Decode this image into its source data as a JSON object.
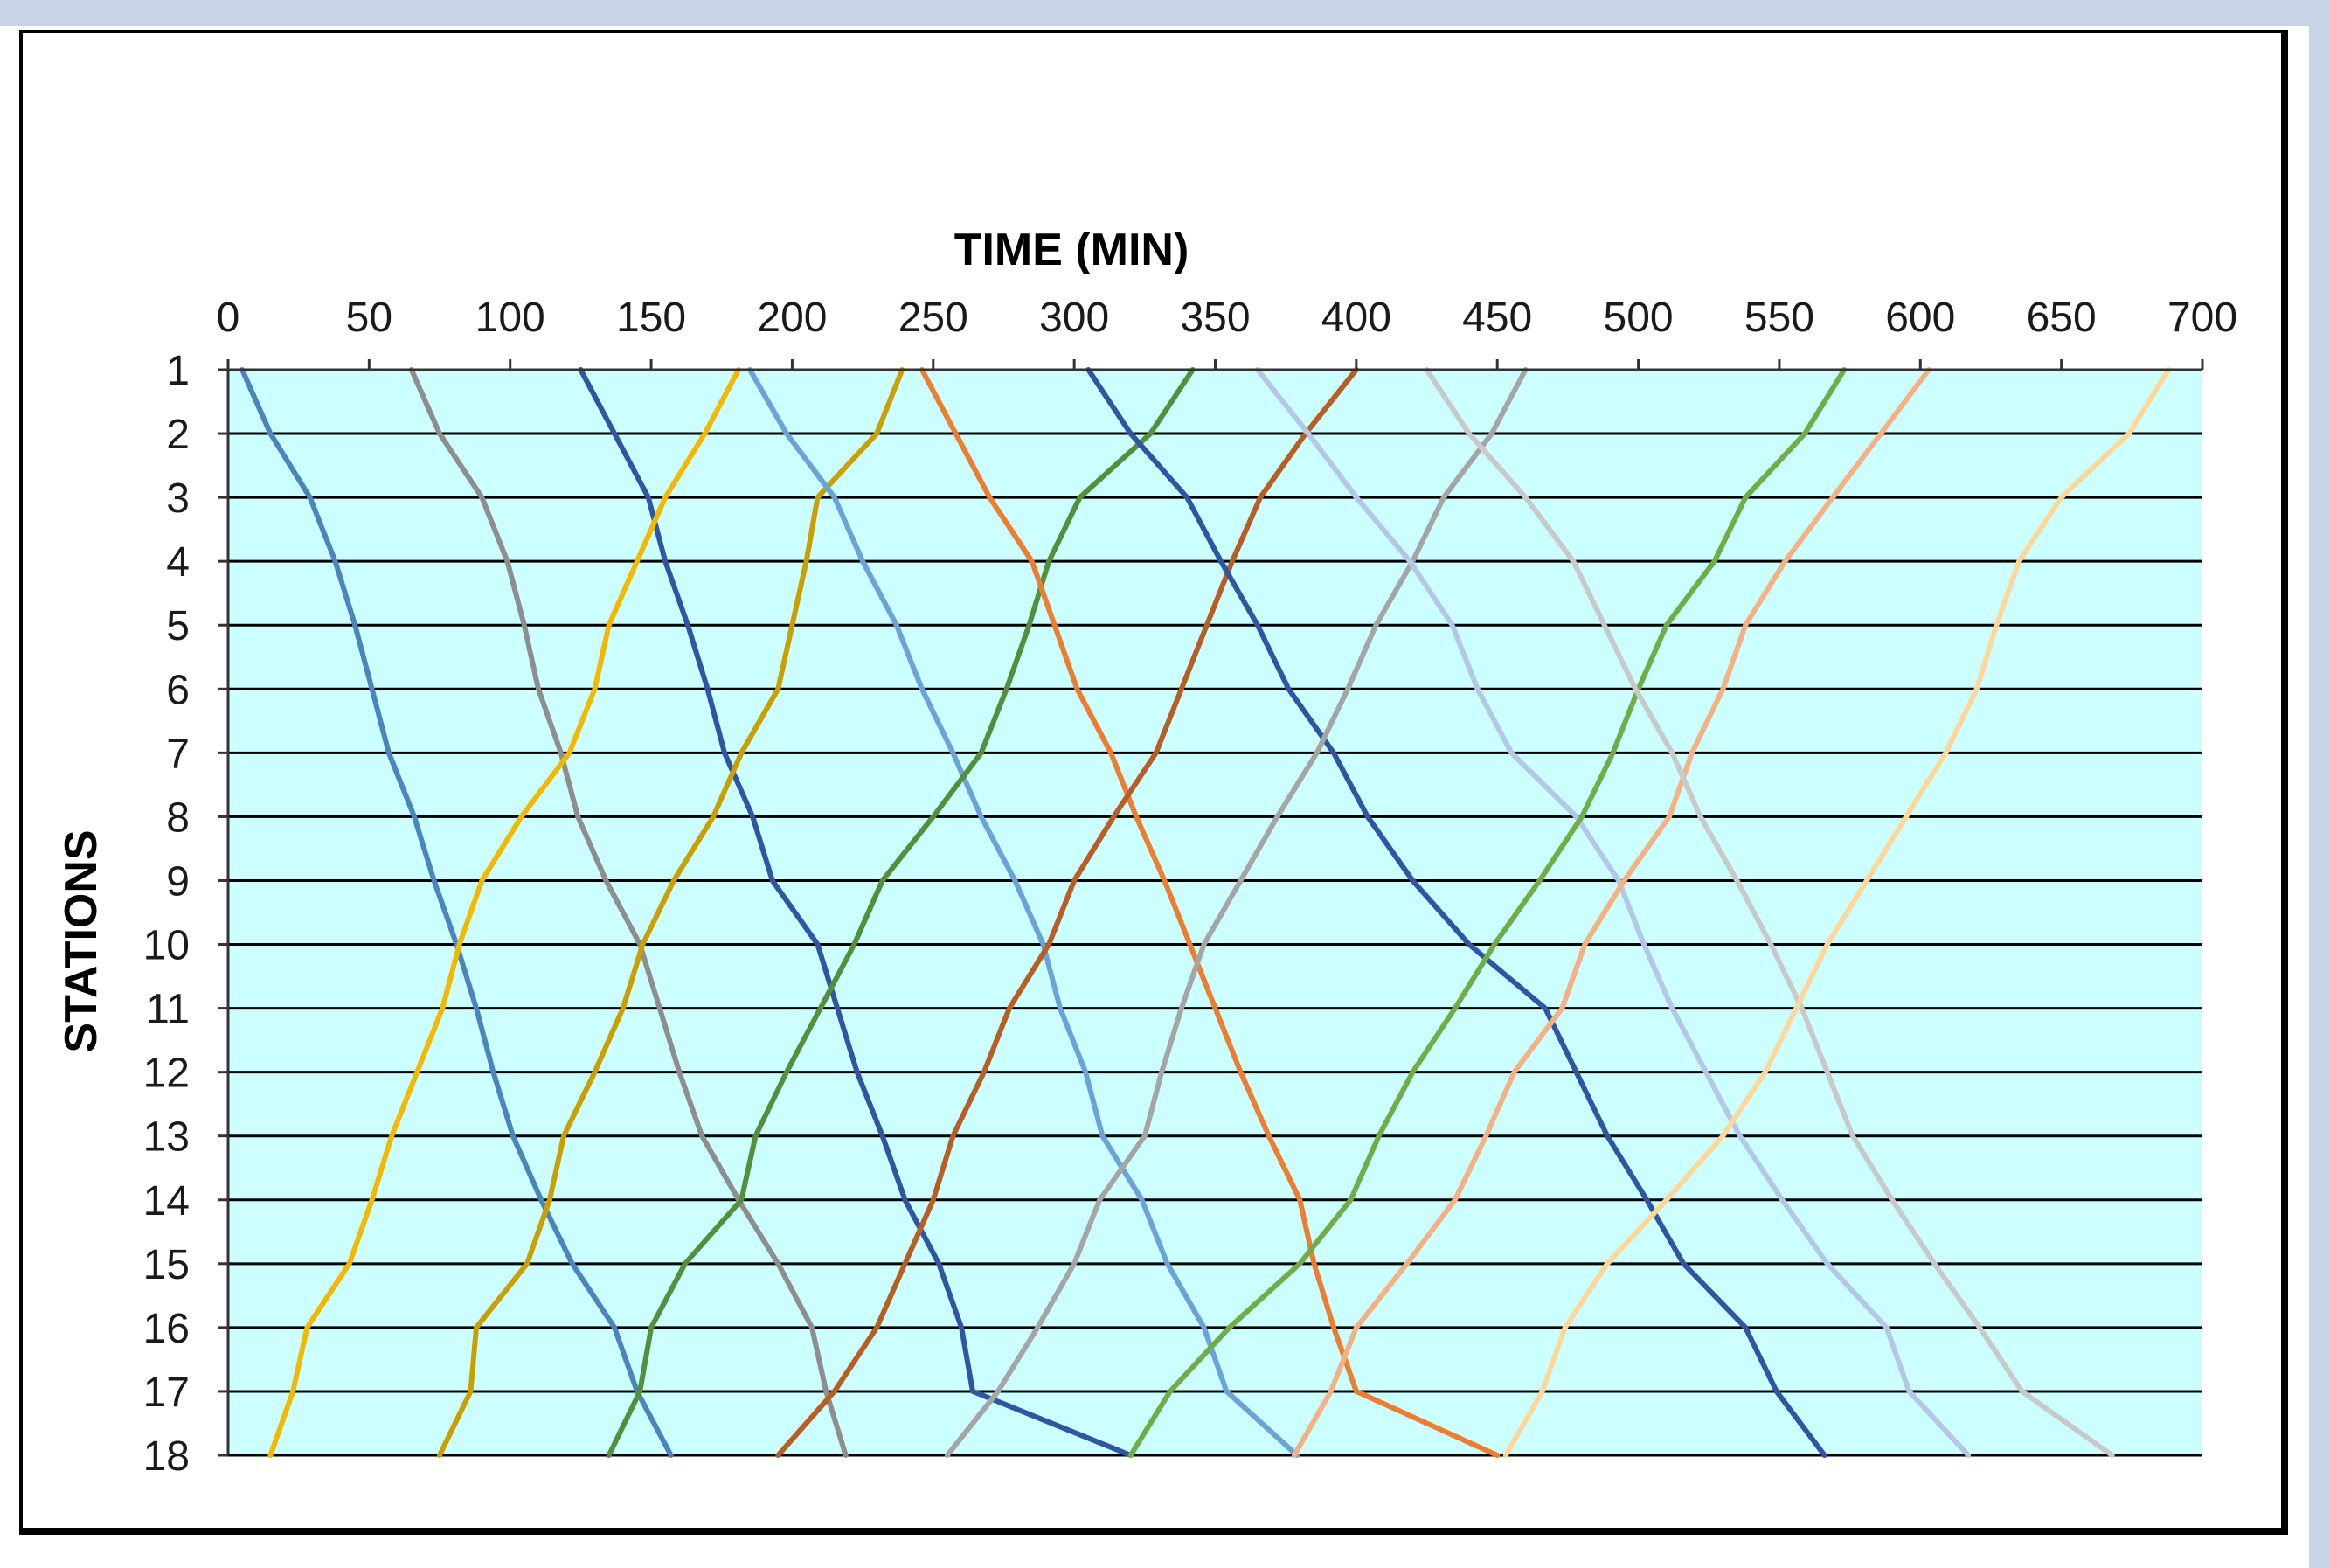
{
  "chart_data": {
    "type": "line",
    "title": "",
    "xlabel": "TIME (MIN)",
    "ylabel": "STATIONS",
    "xlim": [
      0,
      700
    ],
    "x_ticks": [
      0,
      50,
      100,
      150,
      200,
      250,
      300,
      350,
      400,
      450,
      500,
      550,
      600,
      650,
      700
    ],
    "ylim": [
      1,
      18
    ],
    "y_ticks": [
      1,
      2,
      3,
      4,
      5,
      6,
      7,
      8,
      9,
      10,
      11,
      12,
      13,
      14,
      15,
      16,
      17,
      18
    ],
    "y_axis_reversed": true,
    "x_axis_position": "top",
    "plot_background": "#ccffff",
    "grid": {
      "horizontal": true,
      "vertical": false,
      "color": "#000000"
    },
    "legend": "none",
    "series": [
      {
        "color": "#4a86bd",
        "points": [
          [
            5,
            1
          ],
          [
            15,
            2
          ],
          [
            29,
            3
          ],
          [
            38,
            4
          ],
          [
            45,
            5
          ],
          [
            51,
            6
          ],
          [
            57,
            7
          ],
          [
            66,
            8
          ],
          [
            73,
            9
          ],
          [
            81,
            10
          ],
          [
            88,
            11
          ],
          [
            94,
            12
          ],
          [
            101,
            13
          ],
          [
            111,
            14
          ],
          [
            122,
            15
          ],
          [
            137,
            16
          ],
          [
            145,
            17
          ],
          [
            157,
            18
          ]
        ]
      },
      {
        "color": "#8e8e8e",
        "points": [
          [
            65,
            1
          ],
          [
            75,
            2
          ],
          [
            90,
            3
          ],
          [
            99,
            4
          ],
          [
            105,
            5
          ],
          [
            110,
            6
          ],
          [
            118,
            7
          ],
          [
            124,
            8
          ],
          [
            134,
            9
          ],
          [
            146,
            10
          ],
          [
            153,
            11
          ],
          [
            160,
            12
          ],
          [
            168,
            13
          ],
          [
            181,
            14
          ],
          [
            195,
            15
          ],
          [
            207,
            16
          ],
          [
            212,
            17
          ],
          [
            219,
            18
          ]
        ]
      },
      {
        "color": "#2f56a3",
        "points": [
          [
            125,
            1
          ],
          [
            137,
            2
          ],
          [
            149,
            3
          ],
          [
            155,
            4
          ],
          [
            163,
            5
          ],
          [
            170,
            6
          ],
          [
            176,
            7
          ],
          [
            186,
            8
          ],
          [
            193,
            9
          ],
          [
            209,
            10
          ],
          [
            216,
            11
          ],
          [
            223,
            12
          ],
          [
            232,
            13
          ],
          [
            240,
            14
          ],
          [
            252,
            15
          ],
          [
            260,
            16
          ],
          [
            264,
            17
          ],
          [
            320,
            18
          ]
        ]
      },
      {
        "color": "#f5b800",
        "points": [
          [
            181,
            1
          ],
          [
            169,
            2
          ],
          [
            155,
            3
          ],
          [
            145,
            4
          ],
          [
            135,
            5
          ],
          [
            130,
            6
          ],
          [
            121,
            7
          ],
          [
            104,
            8
          ],
          [
            90,
            9
          ],
          [
            82,
            10
          ],
          [
            76,
            11
          ],
          [
            67,
            12
          ],
          [
            58,
            13
          ],
          [
            51,
            14
          ],
          [
            43,
            15
          ],
          [
            28,
            16
          ],
          [
            23,
            17
          ],
          [
            15,
            18
          ]
        ]
      },
      {
        "color": "#c9a000",
        "points": [
          [
            239,
            1
          ],
          [
            230,
            2
          ],
          [
            209,
            3
          ],
          [
            205,
            4
          ],
          [
            200,
            5
          ],
          [
            195,
            6
          ],
          [
            182,
            7
          ],
          [
            172,
            8
          ],
          [
            158,
            9
          ],
          [
            147,
            10
          ],
          [
            140,
            11
          ],
          [
            130,
            12
          ],
          [
            119,
            13
          ],
          [
            114,
            14
          ],
          [
            106,
            15
          ],
          [
            88,
            16
          ],
          [
            86,
            17
          ],
          [
            75,
            18
          ]
        ]
      },
      {
        "color": "#6aa3da",
        "points": [
          [
            185,
            1
          ],
          [
            198,
            2
          ],
          [
            215,
            3
          ],
          [
            225,
            4
          ],
          [
            237,
            5
          ],
          [
            246,
            6
          ],
          [
            257,
            7
          ],
          [
            267,
            8
          ],
          [
            279,
            9
          ],
          [
            289,
            10
          ],
          [
            295,
            11
          ],
          [
            304,
            12
          ],
          [
            310,
            13
          ],
          [
            324,
            14
          ],
          [
            333,
            15
          ],
          [
            346,
            16
          ],
          [
            354,
            17
          ],
          [
            379,
            18
          ]
        ]
      },
      {
        "color": "#548f3c",
        "points": [
          [
            342,
            1
          ],
          [
            327,
            2
          ],
          [
            302,
            3
          ],
          [
            291,
            4
          ],
          [
            284,
            5
          ],
          [
            276,
            6
          ],
          [
            267,
            7
          ],
          [
            250,
            8
          ],
          [
            232,
            9
          ],
          [
            222,
            10
          ],
          [
            210,
            11
          ],
          [
            198,
            12
          ],
          [
            187,
            13
          ],
          [
            182,
            14
          ],
          [
            162,
            15
          ],
          [
            150,
            16
          ],
          [
            146,
            17
          ],
          [
            135,
            18
          ]
        ]
      },
      {
        "color": "#ed7d31",
        "points": [
          [
            246,
            1
          ],
          [
            258,
            2
          ],
          [
            270,
            3
          ],
          [
            285,
            4
          ],
          [
            293,
            5
          ],
          [
            301,
            6
          ],
          [
            313,
            7
          ],
          [
            322,
            8
          ],
          [
            332,
            9
          ],
          [
            341,
            10
          ],
          [
            350,
            11
          ],
          [
            359,
            12
          ],
          [
            369,
            13
          ],
          [
            380,
            14
          ],
          [
            385,
            15
          ],
          [
            392,
            16
          ],
          [
            400,
            17
          ],
          [
            450,
            18
          ]
        ]
      },
      {
        "color": "#b85d24",
        "points": [
          [
            400,
            1
          ],
          [
            382,
            2
          ],
          [
            366,
            3
          ],
          [
            356,
            4
          ],
          [
            347,
            5
          ],
          [
            338,
            6
          ],
          [
            329,
            7
          ],
          [
            314,
            8
          ],
          [
            300,
            9
          ],
          [
            291,
            10
          ],
          [
            277,
            11
          ],
          [
            268,
            12
          ],
          [
            257,
            13
          ],
          [
            250,
            14
          ],
          [
            240,
            15
          ],
          [
            230,
            16
          ],
          [
            215,
            17
          ],
          [
            195,
            18
          ]
        ]
      },
      {
        "color": "#2f56a3",
        "points": [
          [
            305,
            1
          ],
          [
            320,
            2
          ],
          [
            340,
            3
          ],
          [
            352,
            4
          ],
          [
            365,
            5
          ],
          [
            376,
            6
          ],
          [
            392,
            7
          ],
          [
            404,
            8
          ],
          [
            420,
            9
          ],
          [
            440,
            10
          ],
          [
            467,
            11
          ],
          [
            478,
            12
          ],
          [
            489,
            13
          ],
          [
            503,
            14
          ],
          [
            516,
            15
          ],
          [
            538,
            16
          ],
          [
            549,
            17
          ],
          [
            566,
            18
          ]
        ]
      },
      {
        "color": "#a5a5a5",
        "points": [
          [
            460,
            1
          ],
          [
            448,
            2
          ],
          [
            431,
            3
          ],
          [
            420,
            4
          ],
          [
            407,
            5
          ],
          [
            397,
            6
          ],
          [
            386,
            7
          ],
          [
            372,
            8
          ],
          [
            359,
            9
          ],
          [
            346,
            10
          ],
          [
            338,
            11
          ],
          [
            331,
            12
          ],
          [
            325,
            13
          ],
          [
            309,
            14
          ],
          [
            300,
            15
          ],
          [
            287,
            16
          ],
          [
            273,
            17
          ],
          [
            255,
            18
          ]
        ]
      },
      {
        "color": "#b4c7e7",
        "points": [
          [
            365,
            1
          ],
          [
            383,
            2
          ],
          [
            400,
            3
          ],
          [
            419,
            4
          ],
          [
            434,
            5
          ],
          [
            443,
            6
          ],
          [
            455,
            7
          ],
          [
            478,
            8
          ],
          [
            493,
            9
          ],
          [
            502,
            10
          ],
          [
            512,
            11
          ],
          [
            524,
            12
          ],
          [
            536,
            13
          ],
          [
            551,
            14
          ],
          [
            567,
            15
          ],
          [
            588,
            16
          ],
          [
            596,
            17
          ],
          [
            617,
            18
          ]
        ]
      },
      {
        "color": "#70ad47",
        "points": [
          [
            573,
            1
          ],
          [
            559,
            2
          ],
          [
            538,
            3
          ],
          [
            527,
            4
          ],
          [
            510,
            5
          ],
          [
            500,
            6
          ],
          [
            491,
            7
          ],
          [
            480,
            8
          ],
          [
            465,
            9
          ],
          [
            449,
            10
          ],
          [
            435,
            11
          ],
          [
            420,
            12
          ],
          [
            408,
            13
          ],
          [
            398,
            14
          ],
          [
            380,
            15
          ],
          [
            355,
            16
          ],
          [
            334,
            17
          ],
          [
            320,
            18
          ]
        ]
      },
      {
        "color": "#f4b183",
        "points": [
          [
            603,
            1
          ],
          [
            586,
            2
          ],
          [
            569,
            3
          ],
          [
            552,
            4
          ],
          [
            538,
            5
          ],
          [
            530,
            6
          ],
          [
            519,
            7
          ],
          [
            511,
            8
          ],
          [
            495,
            9
          ],
          [
            481,
            10
          ],
          [
            473,
            11
          ],
          [
            456,
            12
          ],
          [
            446,
            13
          ],
          [
            435,
            14
          ],
          [
            418,
            15
          ],
          [
            400,
            16
          ],
          [
            391,
            17
          ],
          [
            378,
            18
          ]
        ]
      },
      {
        "color": "#c9c9c9",
        "points": [
          [
            425,
            1
          ],
          [
            440,
            2
          ],
          [
            460,
            3
          ],
          [
            477,
            4
          ],
          [
            488,
            5
          ],
          [
            499,
            6
          ],
          [
            512,
            7
          ],
          [
            522,
            8
          ],
          [
            535,
            9
          ],
          [
            547,
            10
          ],
          [
            558,
            11
          ],
          [
            567,
            12
          ],
          [
            576,
            13
          ],
          [
            590,
            14
          ],
          [
            605,
            15
          ],
          [
            621,
            16
          ],
          [
            636,
            17
          ],
          [
            668,
            18
          ]
        ]
      },
      {
        "color": "#ffd79a",
        "points": [
          [
            688,
            1
          ],
          [
            674,
            2
          ],
          [
            650,
            3
          ],
          [
            635,
            4
          ],
          [
            627,
            5
          ],
          [
            620,
            6
          ],
          [
            609,
            7
          ],
          [
            595,
            8
          ],
          [
            581,
            9
          ],
          [
            567,
            10
          ],
          [
            556,
            11
          ],
          [
            545,
            12
          ],
          [
            530,
            13
          ],
          [
            510,
            14
          ],
          [
            489,
            15
          ],
          [
            474,
            16
          ],
          [
            466,
            17
          ],
          [
            453,
            18
          ]
        ]
      }
    ]
  }
}
